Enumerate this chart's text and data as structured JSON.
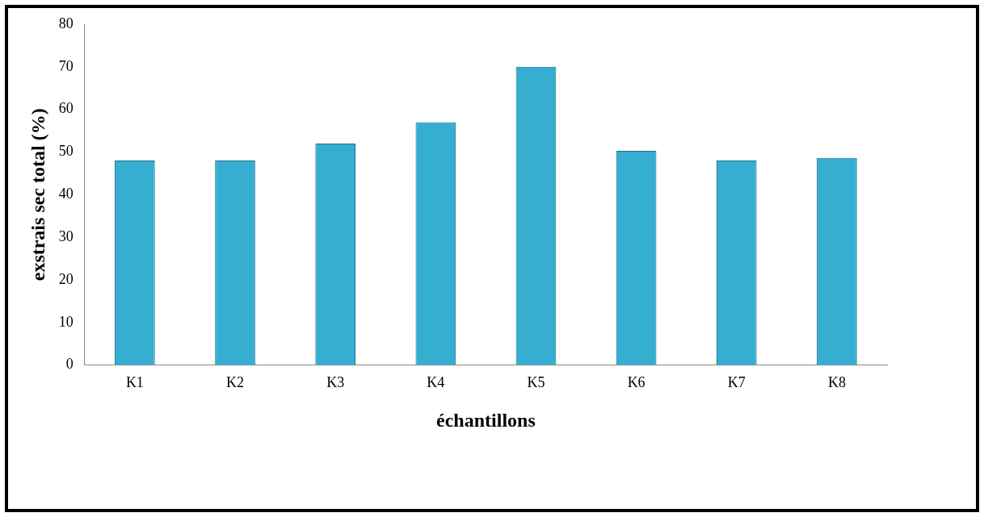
{
  "chart_data": {
    "type": "bar",
    "xlabel": "échantillons",
    "ylabel": "exstrais sec total (%)",
    "categories": [
      "K1",
      "K2",
      "K3",
      "K4",
      "K5",
      "K6",
      "K7",
      "K8"
    ],
    "values": [
      48,
      48,
      52,
      57,
      70,
      50.3,
      48,
      48.6
    ],
    "color": "#35aed2",
    "ylim": [
      0,
      80
    ],
    "yticks": [
      0,
      10,
      20,
      30,
      40,
      50,
      60,
      70,
      80
    ],
    "grid": false,
    "legend": false
  }
}
